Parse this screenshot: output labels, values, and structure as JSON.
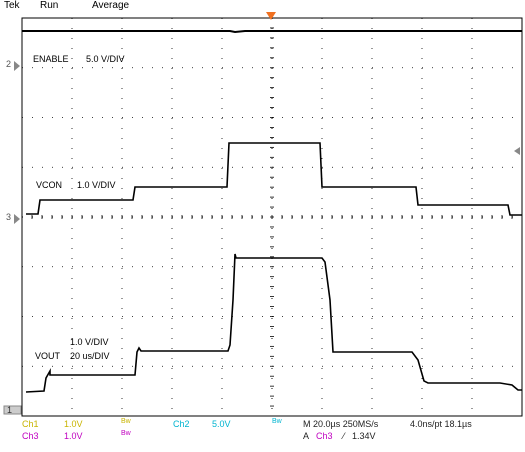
{
  "header": {
    "brand": "Tek",
    "run_state": "Run",
    "acq_mode": "Average"
  },
  "markers": {
    "ch2": "2",
    "ch3": "3",
    "ch1": "1"
  },
  "labels": {
    "enable": "ENABLE",
    "enable_scale": "5.0 V/DIV",
    "vcon": "VCON",
    "vcon_scale": "1.0 V/DIV",
    "vout_scale": "1.0 V/DIV",
    "vout": "VOUT",
    "vout_time": "20 us/DIV"
  },
  "status_bar": {
    "ch1_name": "Ch1",
    "ch1_scale": "1.0V",
    "ch1_bw": "Bw",
    "ch2_name": "Ch2",
    "ch2_scale": "5.0V",
    "ch2_bw": "Bw",
    "ch3_name": "Ch3",
    "ch3_scale": "1.0V",
    "ch3_bw": "Bw",
    "timebase": "M 20.0µs 250MS/s",
    "resolution": "4.0ns/pt 18.1µs",
    "trigger_prefix": "A",
    "trigger_source": "Ch3",
    "trigger_slope": "⁄",
    "trigger_level": "1.34V"
  },
  "colors": {
    "grid": "#000000",
    "trace": "#000000",
    "trigger_marker": "#f07020",
    "ch1": "#c8b400",
    "ch2": "#00b4d0",
    "ch3": "#c000c0"
  },
  "icons": {
    "trigger_position": "orange-down-triangle",
    "trigger_level": "right-arrow"
  }
}
